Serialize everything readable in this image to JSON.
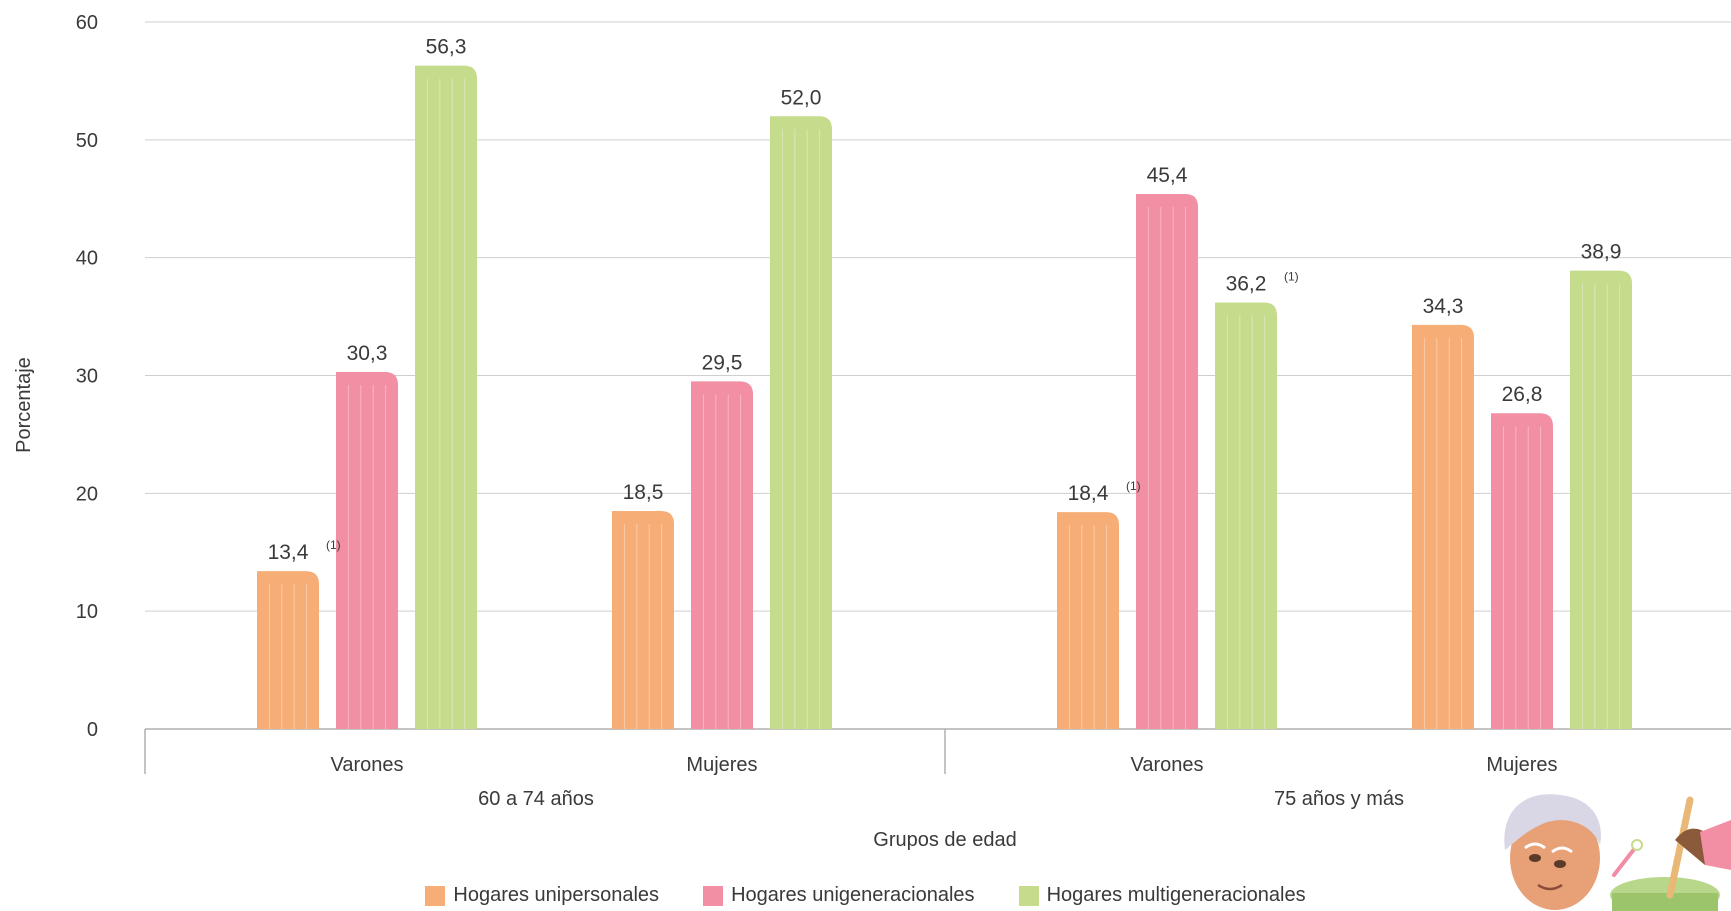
{
  "chart_data": {
    "type": "bar",
    "ylabel": "Porcentaje",
    "xlabel": "Grupos de edad",
    "ylim": [
      0,
      60
    ],
    "yticks": [
      "0",
      "10",
      "20",
      "30",
      "40",
      "50",
      "60"
    ],
    "groups": [
      {
        "label": "60 a 74 años",
        "categories": [
          "Varones",
          "Mujeres"
        ]
      },
      {
        "label": "75 años y más",
        "categories": [
          "Varones",
          "Mujeres"
        ]
      }
    ],
    "series": [
      {
        "name": "Hogares unipersonales",
        "color": "#F7AE76",
        "values": [
          13.4,
          18.5,
          18.4,
          34.3
        ],
        "labels": [
          "13,4",
          "18,5",
          "18,4",
          "34,3"
        ],
        "notes": [
          "(1)",
          "",
          "(1)",
          ""
        ]
      },
      {
        "name": "Hogares unigeneracionales",
        "color": "#F28FA5",
        "values": [
          30.3,
          29.5,
          45.4,
          26.8
        ],
        "labels": [
          "30,3",
          "29,5",
          "45,4",
          "26,8"
        ],
        "notes": [
          "",
          "",
          "",
          ""
        ]
      },
      {
        "name": "Hogares multigeneracionales",
        "color": "#C5DC8C",
        "values": [
          56.3,
          52.0,
          36.2,
          38.9
        ],
        "labels": [
          "56,3",
          "52,0",
          "36,2",
          "38,9"
        ],
        "notes": [
          "",
          "",
          "(1)",
          ""
        ]
      }
    ],
    "grid": true,
    "legend_position": "bottom"
  },
  "decoration": {
    "icon": "elderly-person-cooking-illustration"
  }
}
